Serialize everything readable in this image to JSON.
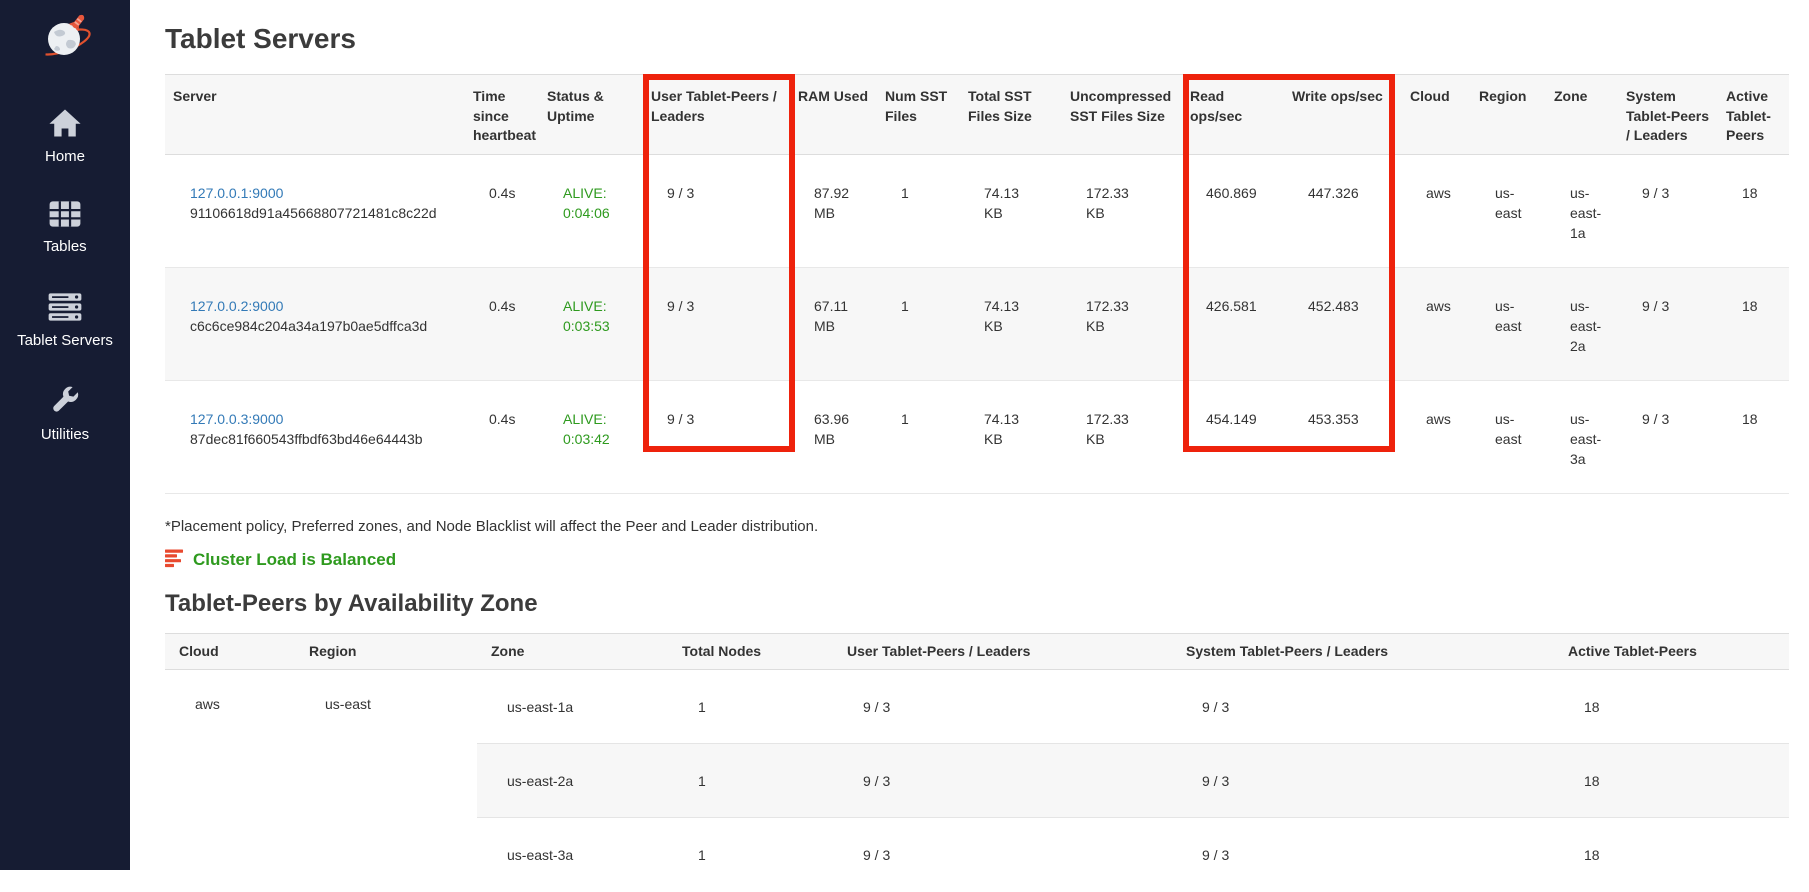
{
  "sidebar": {
    "items": [
      {
        "label": "Home"
      },
      {
        "label": "Tables"
      },
      {
        "label": "Tablet Servers"
      },
      {
        "label": "Utilities"
      }
    ]
  },
  "page": {
    "title": "Tablet Servers",
    "note": "*Placement policy, Preferred zones, and Node Blacklist will affect the Peer and Leader distribution.",
    "balance_status": "Cluster Load is Balanced",
    "section2_title": "Tablet-Peers by Availability Zone"
  },
  "servers_table": {
    "columns": [
      "Server",
      "Time since heartbeat",
      "Status & Uptime",
      "User Tablet-Peers / Leaders",
      "RAM Used",
      "Num SST Files",
      "Total SST Files Size",
      "Uncompressed SST Files Size",
      "Read ops/sec",
      "Write ops/sec",
      "Cloud",
      "Region",
      "Zone",
      "System Tablet-Peers / Leaders",
      "Active Tablet-Peers"
    ],
    "rows": [
      {
        "address": "127.0.0.1:9000",
        "uuid": "91106618d91a45668807721481c8c22d",
        "heartbeat": "0.4s",
        "status": "ALIVE:",
        "uptime": "0:04:06",
        "user_peers": "9 / 3",
        "ram": "87.92 MB",
        "num_sst": "1",
        "total_sst": "74.13 KB",
        "uncompressed_sst": "172.33 KB",
        "read_ops": "460.869",
        "write_ops": "447.326",
        "cloud": "aws",
        "region": "us-east",
        "zone": "us-east-1a",
        "system_peers": "9 / 3",
        "active_peers": "18"
      },
      {
        "address": "127.0.0.2:9000",
        "uuid": "c6c6ce984c204a34a197b0ae5dffca3d",
        "heartbeat": "0.4s",
        "status": "ALIVE:",
        "uptime": "0:03:53",
        "user_peers": "9 / 3",
        "ram": "67.11 MB",
        "num_sst": "1",
        "total_sst": "74.13 KB",
        "uncompressed_sst": "172.33 KB",
        "read_ops": "426.581",
        "write_ops": "452.483",
        "cloud": "aws",
        "region": "us-east",
        "zone": "us-east-2a",
        "system_peers": "9 / 3",
        "active_peers": "18"
      },
      {
        "address": "127.0.0.3:9000",
        "uuid": "87dec81f660543ffbdf63bd46e64443b",
        "heartbeat": "0.4s",
        "status": "ALIVE:",
        "uptime": "0:03:42",
        "user_peers": "9 / 3",
        "ram": "63.96 MB",
        "num_sst": "1",
        "total_sst": "74.13 KB",
        "uncompressed_sst": "172.33 KB",
        "read_ops": "454.149",
        "write_ops": "453.353",
        "cloud": "aws",
        "region": "us-east",
        "zone": "us-east-3a",
        "system_peers": "9 / 3",
        "active_peers": "18"
      }
    ]
  },
  "zones_table": {
    "columns": [
      "Cloud",
      "Region",
      "Zone",
      "Total Nodes",
      "User Tablet-Peers / Leaders",
      "System Tablet-Peers / Leaders",
      "Active Tablet-Peers"
    ],
    "cloud": "aws",
    "region": "us-east",
    "rows": [
      {
        "zone": "us-east-1a",
        "total_nodes": "1",
        "user_peers": "9 / 3",
        "system_peers": "9 / 3",
        "active_peers": "18"
      },
      {
        "zone": "us-east-2a",
        "total_nodes": "1",
        "user_peers": "9 / 3",
        "system_peers": "9 / 3",
        "active_peers": "18"
      },
      {
        "zone": "us-east-3a",
        "total_nodes": "1",
        "user_peers": "9 / 3",
        "system_peers": "9 / 3",
        "active_peers": "18"
      }
    ]
  },
  "colors": {
    "sidebar_bg": "#161c33",
    "highlight_red": "#ee220c",
    "status_green": "#2e9a1e",
    "link_blue": "#337ab7",
    "balance_icon_orange": "#e8492f"
  }
}
